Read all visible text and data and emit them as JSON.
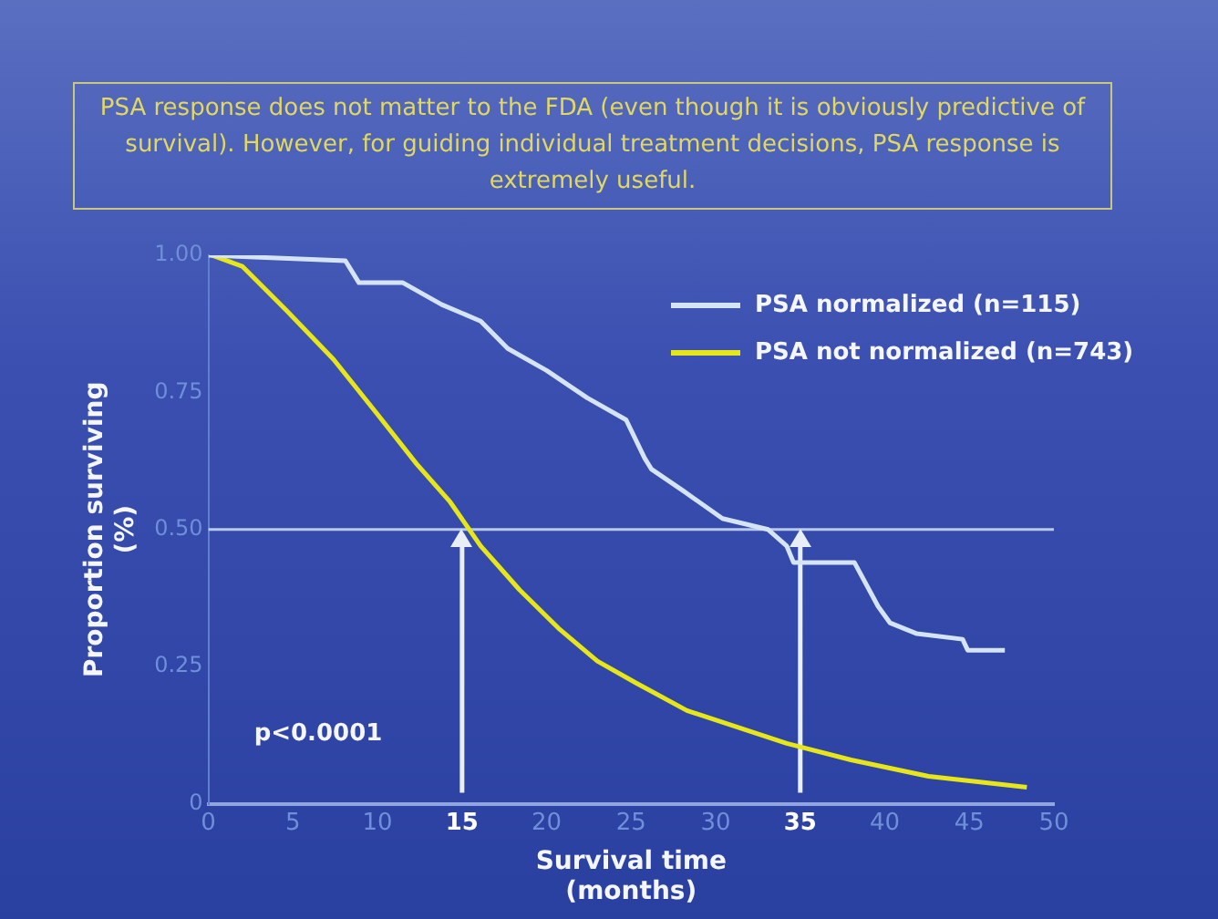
{
  "chart_data": {
    "type": "line",
    "title": "PSA response does not matter to the FDA (even though it is obviously predictive of survival).  However, for guiding individual treatment decisions, PSA response is extremely useful.",
    "xlabel": "Survival time\n(months)",
    "ylabel": "Proportion surviving\n(%)",
    "series": [
      {
        "name": "PSA normalized (n=115)",
        "color": "#d4e4f4",
        "x": [
          0,
          8.1,
          8.9,
          11.5,
          13.8,
          16.1,
          17.7,
          20,
          22.4,
          24.7,
          25.8,
          26.2,
          28.1,
          30.4,
          33.1,
          34.2,
          34.6,
          38.2,
          39.6,
          40.3,
          41.9,
          44.6,
          44.9,
          47.1
        ],
        "values": [
          1,
          0.99,
          0.95,
          0.95,
          0.91,
          0.88,
          0.83,
          0.79,
          0.74,
          0.7,
          0.63,
          0.61,
          0.57,
          0.52,
          0.5,
          0.47,
          0.44,
          0.44,
          0.36,
          0.33,
          0.31,
          0.3,
          0.28,
          0.28
        ]
      },
      {
        "name": "PSA not normalized (n=743)",
        "color": "#e6e619",
        "x": [
          0.2,
          2,
          4.6,
          7.4,
          10,
          12.3,
          14.3,
          16.1,
          18.4,
          20.7,
          23,
          25.3,
          28.3,
          34.2,
          38,
          42.6,
          48.4
        ],
        "values": [
          1,
          0.98,
          0.9,
          0.81,
          0.71,
          0.62,
          0.55,
          0.47,
          0.39,
          0.32,
          0.26,
          0.22,
          0.17,
          0.11,
          0.08,
          0.05,
          0.03
        ]
      }
    ],
    "xlim": [
      0,
      50
    ],
    "xticks": [
      0,
      5,
      10,
      15,
      20,
      25,
      30,
      35,
      40,
      45,
      50
    ],
    "ylim": [
      0,
      1
    ],
    "yticks": [
      0,
      {
        "value": 0.25,
        "label": "0.25"
      },
      {
        "value": 0.5,
        "label": "0.50"
      },
      {
        "value": 0.75,
        "label": "0.75"
      },
      {
        "value": 1,
        "label": "1.00"
      }
    ],
    "ref_lines": [
      {
        "axis": "y",
        "value": 0.5,
        "color": "#b8c8e8"
      },
      {
        "axis": "x",
        "value": 15,
        "color": "#e8eef8"
      },
      {
        "axis": "x",
        "value": 35,
        "color": "#e8eef8"
      }
    ],
    "annotations": [
      "p<0.0001"
    ],
    "legend": "top right",
    "grid": false,
    "marker": "none",
    "line_style": "solid"
  }
}
